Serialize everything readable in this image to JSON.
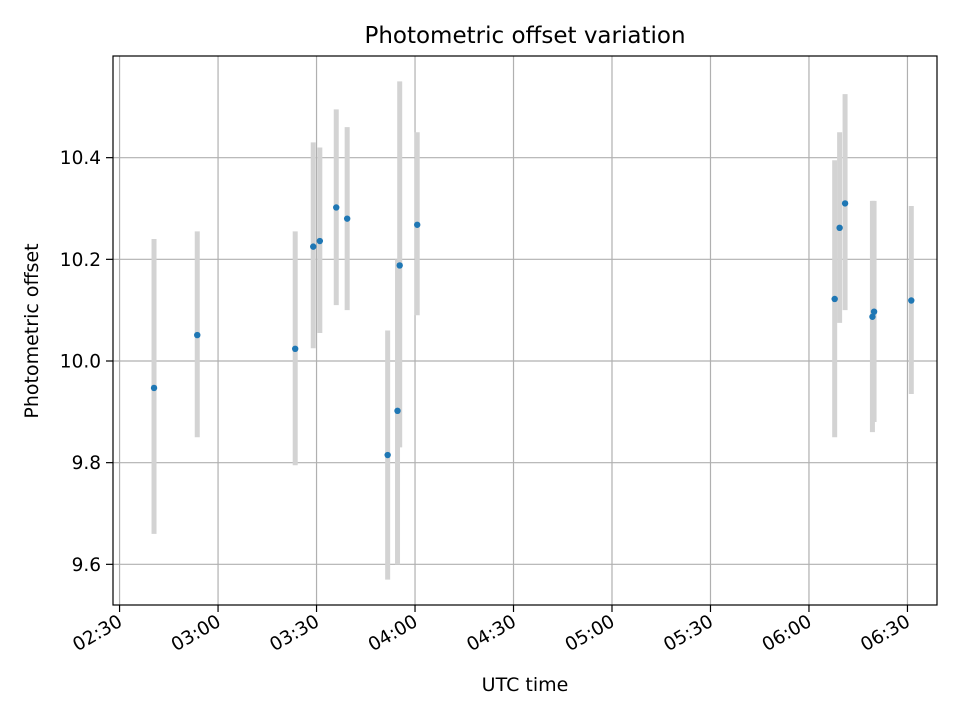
{
  "chart_data": {
    "type": "scatter",
    "title": "Photometric offset variation",
    "xlabel": "UTC time",
    "ylabel": "Photometric offset",
    "x_unit": "time (HH:MM, UTC)",
    "xlim": [
      "02:28",
      "06:39"
    ],
    "ylim": [
      9.52,
      10.6
    ],
    "grid": true,
    "x_ticks": [
      "02:30",
      "03:00",
      "03:30",
      "04:00",
      "04:30",
      "05:00",
      "05:30",
      "06:00",
      "06:30"
    ],
    "y_ticks": [
      9.6,
      9.8,
      10.0,
      10.2,
      10.4
    ],
    "y_tick_labels": [
      "9.6",
      "9.8",
      "10.0",
      "10.2",
      "10.4"
    ],
    "marker_color": "#1f77b4",
    "errorbar_color": "#d3d3d3",
    "points": [
      {
        "x": "02:40:30",
        "y": 9.947,
        "low": 9.66,
        "high": 10.24
      },
      {
        "x": "02:53:40",
        "y": 10.051,
        "low": 9.85,
        "high": 10.255
      },
      {
        "x": "03:23:30",
        "y": 10.024,
        "low": 9.795,
        "high": 10.255
      },
      {
        "x": "03:29:00",
        "y": 10.225,
        "low": 10.025,
        "high": 10.43
      },
      {
        "x": "03:31:00",
        "y": 10.236,
        "low": 10.055,
        "high": 10.42
      },
      {
        "x": "03:36:00",
        "y": 10.302,
        "low": 10.11,
        "high": 10.495
      },
      {
        "x": "03:39:20",
        "y": 10.28,
        "low": 10.1,
        "high": 10.46
      },
      {
        "x": "03:51:40",
        "y": 9.815,
        "low": 9.57,
        "high": 10.06
      },
      {
        "x": "03:54:40",
        "y": 9.902,
        "low": 9.6,
        "high": 10.2
      },
      {
        "x": "03:55:20",
        "y": 10.188,
        "low": 9.83,
        "high": 10.55
      },
      {
        "x": "04:00:40",
        "y": 10.268,
        "low": 10.09,
        "high": 10.45
      },
      {
        "x": "06:07:50",
        "y": 10.122,
        "low": 9.85,
        "high": 10.395
      },
      {
        "x": "06:09:20",
        "y": 10.262,
        "low": 10.075,
        "high": 10.45
      },
      {
        "x": "06:11:00",
        "y": 10.31,
        "low": 10.1,
        "high": 10.525
      },
      {
        "x": "06:19:20",
        "y": 10.087,
        "low": 9.86,
        "high": 10.315
      },
      {
        "x": "06:19:50",
        "y": 10.097,
        "low": 9.88,
        "high": 10.315
      },
      {
        "x": "06:31:10",
        "y": 10.119,
        "low": 9.935,
        "high": 10.305
      }
    ]
  }
}
